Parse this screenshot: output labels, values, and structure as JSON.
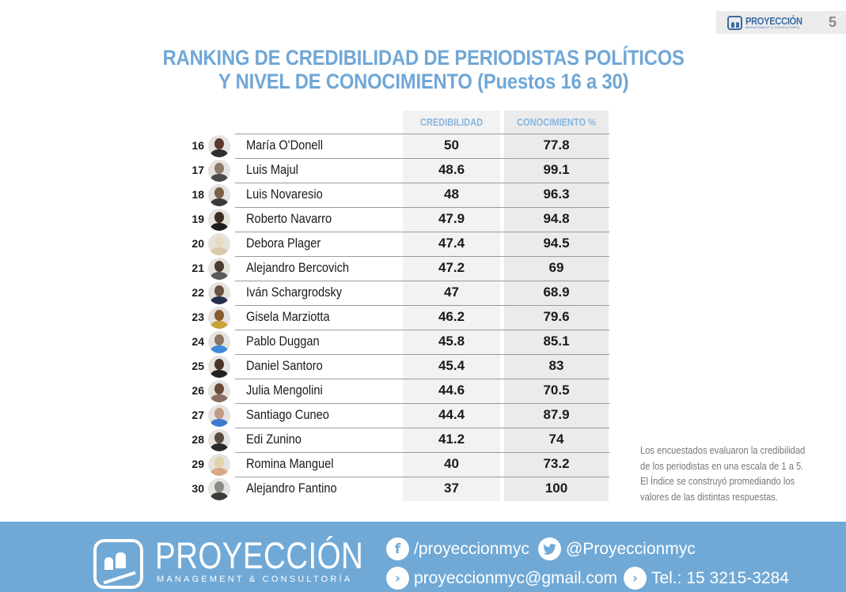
{
  "header": {
    "brand_name": "PROYECCIÓN",
    "brand_sub": "MANAGEMENT & CONSULTORÍA",
    "page_number": "5"
  },
  "title": {
    "line1": "RANKING DE CREDIBILIDAD DE PERIODISTAS POLÍTICOS",
    "line2": "Y NIVEL DE CONOCIMIENTO (Puestos 16 a 30)"
  },
  "table": {
    "columns": [
      "CREDIBILIDAD",
      "CONOCIMIENTO %"
    ],
    "rows": [
      {
        "rank": "16",
        "name": "María O'Donell",
        "credibilidad": "50",
        "conocimiento": "77.8"
      },
      {
        "rank": "17",
        "name": "Luis Majul",
        "credibilidad": "48.6",
        "conocimiento": "99.1"
      },
      {
        "rank": "18",
        "name": "Luis Novaresio",
        "credibilidad": "48",
        "conocimiento": "96.3"
      },
      {
        "rank": "19",
        "name": "Roberto Navarro",
        "credibilidad": "47.9",
        "conocimiento": "94.8"
      },
      {
        "rank": "20",
        "name": "Debora Plager",
        "credibilidad": "47.4",
        "conocimiento": "94.5"
      },
      {
        "rank": "21",
        "name": "Alejandro Bercovich",
        "credibilidad": "47.2",
        "conocimiento": "69"
      },
      {
        "rank": "22",
        "name": "Iván Schargrodsky",
        "credibilidad": "47",
        "conocimiento": "68.9"
      },
      {
        "rank": "23",
        "name": "Gisela Marziotta",
        "credibilidad": "46.2",
        "conocimiento": "79.6"
      },
      {
        "rank": "24",
        "name": "Pablo Duggan",
        "credibilidad": "45.8",
        "conocimiento": "85.1"
      },
      {
        "rank": "25",
        "name": "Daniel Santoro",
        "credibilidad": "45.4",
        "conocimiento": "83"
      },
      {
        "rank": "26",
        "name": "Julia Mengolini",
        "credibilidad": "44.6",
        "conocimiento": "70.5"
      },
      {
        "rank": "27",
        "name": "Santiago Cuneo",
        "credibilidad": "44.4",
        "conocimiento": "87.9"
      },
      {
        "rank": "28",
        "name": "Edi Zunino",
        "credibilidad": "41.2",
        "conocimiento": "74"
      },
      {
        "rank": "29",
        "name": "Romina Manguel",
        "credibilidad": "40",
        "conocimiento": "73.2"
      },
      {
        "rank": "30",
        "name": "Alejandro Fantino",
        "credibilidad": "37",
        "conocimiento": "100"
      }
    ]
  },
  "note": {
    "line1": "Los encuestados evaluaron la credibilidad",
    "line2": "de los periodistas en una escala de 1 a 5.",
    "line3": "El Índice se construyó promediando los",
    "line4": "valores de las distintas respuestas."
  },
  "footer": {
    "brand_name": "PROYECCIÓN",
    "brand_sub": "MANAGEMENT & CONSULTORÍA",
    "facebook": "/proyeccionmyc",
    "twitter": "@Proyeccionmyc",
    "email": "proyeccionmyc@gmail.com",
    "phone": "Tel.: 15 3215-3284",
    "icons": {
      "facebook": "f",
      "twitter": "🐦",
      "email": "›",
      "phone": "›"
    }
  },
  "colors": {
    "title": "#70a7d6",
    "column_header": "#86b6de",
    "footer_bg": "#70a9d6"
  }
}
